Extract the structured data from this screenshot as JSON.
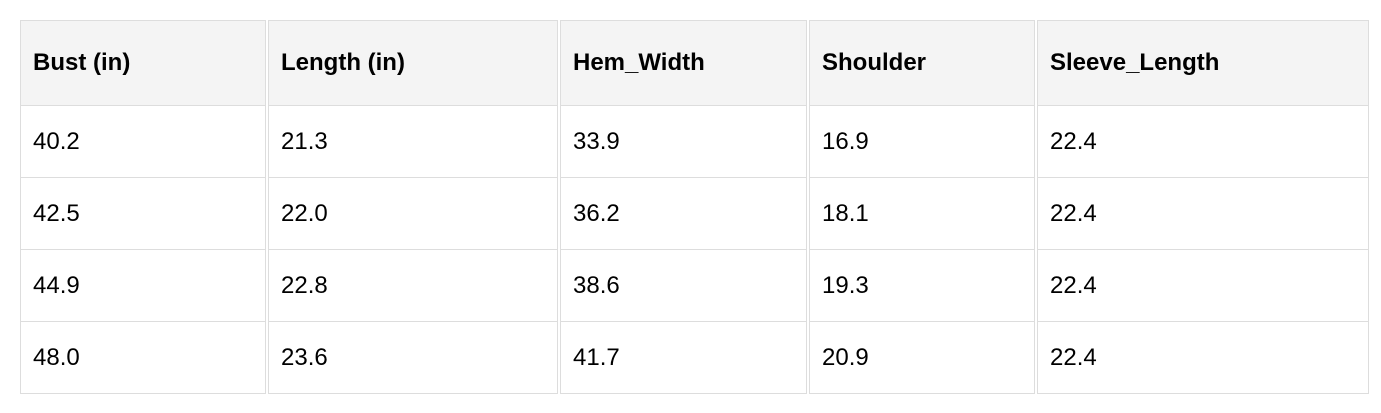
{
  "table": {
    "headers": [
      "Bust (in)",
      "Length (in)",
      "Hem_Width",
      "Shoulder",
      "Sleeve_Length"
    ],
    "rows": [
      [
        "40.2",
        "21.3",
        "33.9",
        "16.9",
        "22.4"
      ],
      [
        "42.5",
        "22.0",
        "36.2",
        "18.1",
        "22.4"
      ],
      [
        "44.9",
        "22.8",
        "38.6",
        "19.3",
        "22.4"
      ],
      [
        "48.0",
        "23.6",
        "41.7",
        "20.9",
        "22.4"
      ]
    ]
  }
}
